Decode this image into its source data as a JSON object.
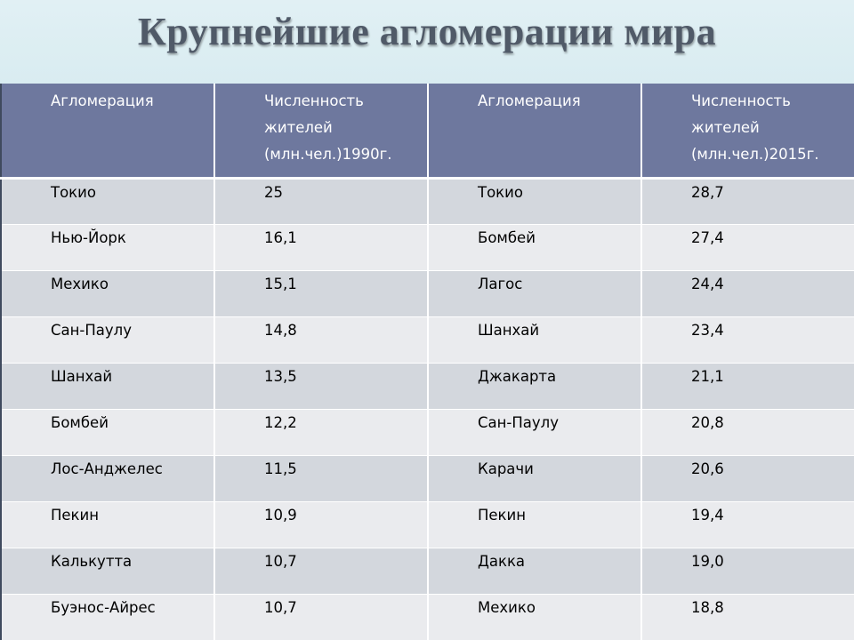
{
  "title": "Крупнейшие агломерации мира",
  "table": {
    "headers": [
      "Агломерация",
      "Численность жителей (млн.чел.)1990г.",
      "Агломерация",
      "Численность жителей (млн.чел.)2015г."
    ],
    "rows": [
      [
        "Токио",
        "25",
        "Токио",
        "28,7"
      ],
      [
        "Нью-Йорк",
        "16,1",
        "Бомбей",
        "27,4"
      ],
      [
        "Мехико",
        "15,1",
        "Лагос",
        "24,4"
      ],
      [
        "Сан-Паулу",
        "14,8",
        "Шанхай",
        "23,4"
      ],
      [
        "Шанхай",
        "13,5",
        "Джакарта",
        "21,1"
      ],
      [
        "Бомбей",
        "12,2",
        "Сан-Паулу",
        "20,8"
      ],
      [
        "Лос-Анджелес",
        "11,5",
        "Карачи",
        "20,6"
      ],
      [
        "Пекин",
        "10,9",
        "Пекин",
        "19,4"
      ],
      [
        "Калькутта",
        "10,7",
        "Дакка",
        "19,0"
      ],
      [
        "Буэнос-Айрес",
        "10,7",
        "Мехико",
        "18,8"
      ]
    ]
  },
  "colors": {
    "header_bg": "#6e789e",
    "row_dark": "#d3d7dd",
    "row_light": "#eaebee",
    "title_band": "#dcedf2",
    "title_text": "#505a68"
  }
}
